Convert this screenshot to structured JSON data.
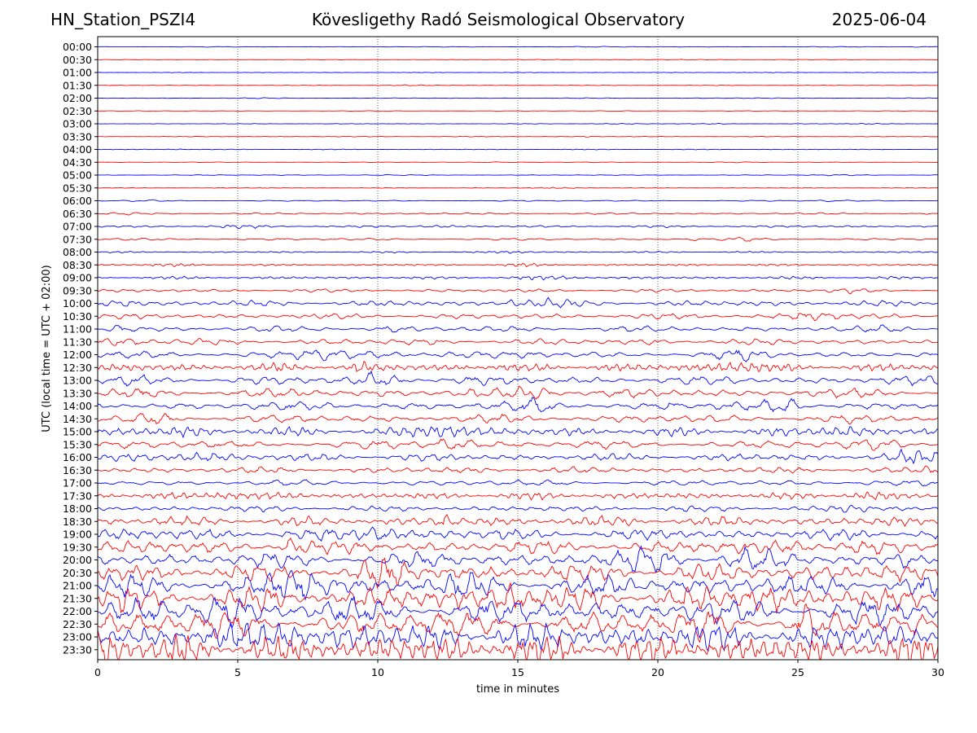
{
  "header": {
    "station": "HN_Station_PSZI4",
    "title": "Kövesligethy Radó Seismological Observatory",
    "date": "2025-06-04"
  },
  "chart_data": {
    "type": "line",
    "xlabel": "time in minutes",
    "ylabel": "UTC (local time = UTC + 02:00)",
    "xlim": [
      0,
      30
    ],
    "x_ticks": [
      0,
      5,
      10,
      15,
      20,
      25,
      30
    ],
    "x_grid": "dotted vertical lines at each x tick",
    "row_labels": [
      "00:00",
      "00:30",
      "01:00",
      "01:30",
      "02:00",
      "02:30",
      "03:00",
      "03:30",
      "04:00",
      "04:30",
      "05:00",
      "05:30",
      "06:00",
      "06:30",
      "07:00",
      "07:30",
      "08:00",
      "08:30",
      "09:00",
      "09:30",
      "10:00",
      "10:30",
      "11:00",
      "11:30",
      "12:00",
      "12:30",
      "13:00",
      "13:30",
      "14:00",
      "14:30",
      "15:00",
      "15:30",
      "16:00",
      "16:30",
      "17:00",
      "17:30",
      "18:00",
      "18:30",
      "19:00",
      "19:30",
      "20:00",
      "20:30",
      "21:00",
      "21:30",
      "22:00",
      "22:30",
      "23:00",
      "23:30"
    ],
    "row_colors": [
      "#0000ff",
      "#ff0000"
    ],
    "relative_amplitude": [
      0.06,
      0.05,
      0.05,
      0.06,
      0.06,
      0.05,
      0.05,
      0.06,
      0.07,
      0.06,
      0.07,
      0.06,
      0.12,
      0.18,
      0.22,
      0.22,
      0.16,
      0.2,
      0.28,
      0.35,
      0.6,
      0.55,
      0.6,
      0.65,
      0.75,
      0.8,
      0.9,
      0.95,
      0.95,
      0.85,
      0.9,
      0.85,
      0.75,
      0.65,
      0.6,
      0.65,
      0.6,
      1.0,
      1.2,
      1.4,
      1.6,
      1.9,
      2.2,
      2.4,
      2.6,
      2.7,
      2.8,
      2.9
    ]
  }
}
